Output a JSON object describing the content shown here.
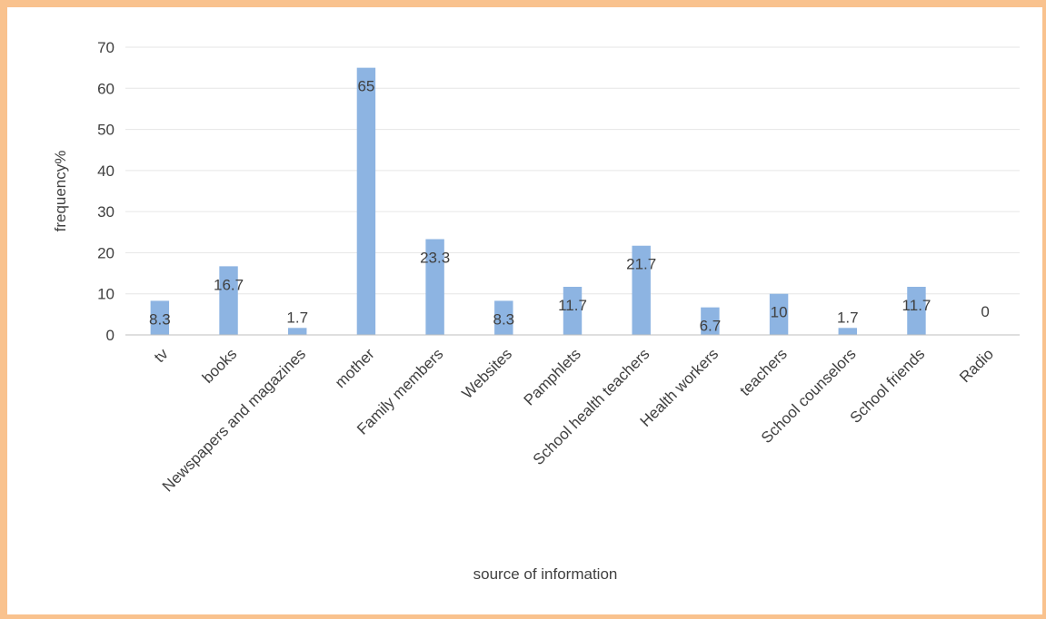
{
  "chart_data": {
    "type": "bar",
    "categories": [
      "tv",
      "books",
      "Newspapers and magazines",
      "mother",
      "Family members",
      "Websites",
      "Pamphlets",
      "School health teachers",
      "Health workers",
      "teachers",
      "School counselors",
      "School friends",
      "Radio"
    ],
    "values": [
      8.3,
      16.7,
      1.7,
      65,
      23.3,
      8.3,
      11.7,
      21.7,
      6.7,
      10,
      1.7,
      11.7,
      0
    ],
    "data_labels": [
      "8.3",
      "16.7",
      "1.7",
      "65",
      "23.3",
      "8.3",
      "11.7",
      "21.7",
      "6.7",
      "10",
      "1.7",
      "11.7",
      "0"
    ],
    "title": "",
    "xlabel": "source of information",
    "ylabel": "frequency%",
    "ylim": [
      0,
      70
    ],
    "yticks": [
      0,
      10,
      20,
      30,
      40,
      50,
      60,
      70
    ],
    "grid": true,
    "legend": "none",
    "bar_color": "#8db4e2",
    "border_color": "#f9c28e"
  }
}
